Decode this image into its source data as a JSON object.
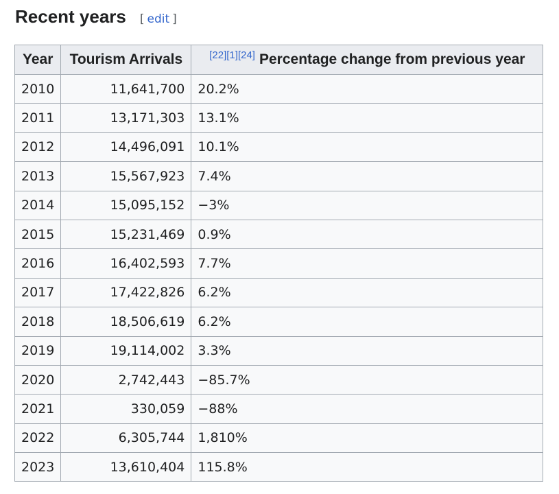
{
  "section": {
    "title": "Recent years",
    "edit_open": "[",
    "edit_label": "edit",
    "edit_close": "]"
  },
  "table": {
    "headers": {
      "year": "Year",
      "arrivals": "Tourism Arrivals",
      "refs": [
        "[22]",
        "[1]",
        "[24]"
      ],
      "change": "Percentage change from previous year"
    },
    "rows": [
      {
        "year": "2010",
        "arrivals": "11,641,700",
        "change": "20.2%"
      },
      {
        "year": "2011",
        "arrivals": "13,171,303",
        "change": "13.1%"
      },
      {
        "year": "2012",
        "arrivals": "14,496,091",
        "change": "10.1%"
      },
      {
        "year": "2013",
        "arrivals": "15,567,923",
        "change": "7.4%"
      },
      {
        "year": "2014",
        "arrivals": "15,095,152",
        "change": "−3%"
      },
      {
        "year": "2015",
        "arrivals": "15,231,469",
        "change": "0.9%"
      },
      {
        "year": "2016",
        "arrivals": "16,402,593",
        "change": "7.7%"
      },
      {
        "year": "2017",
        "arrivals": "17,422,826",
        "change": "6.2%"
      },
      {
        "year": "2018",
        "arrivals": "18,506,619",
        "change": "6.2%"
      },
      {
        "year": "2019",
        "arrivals": "19,114,002",
        "change": "3.3%"
      },
      {
        "year": "2020",
        "arrivals": "2,742,443",
        "change": "−85.7%"
      },
      {
        "year": "2021",
        "arrivals": "330,059",
        "change": "−88%"
      },
      {
        "year": "2022",
        "arrivals": "6,305,744",
        "change": "1,810%"
      },
      {
        "year": "2023",
        "arrivals": "13,610,404",
        "change": "115.8%"
      }
    ]
  }
}
